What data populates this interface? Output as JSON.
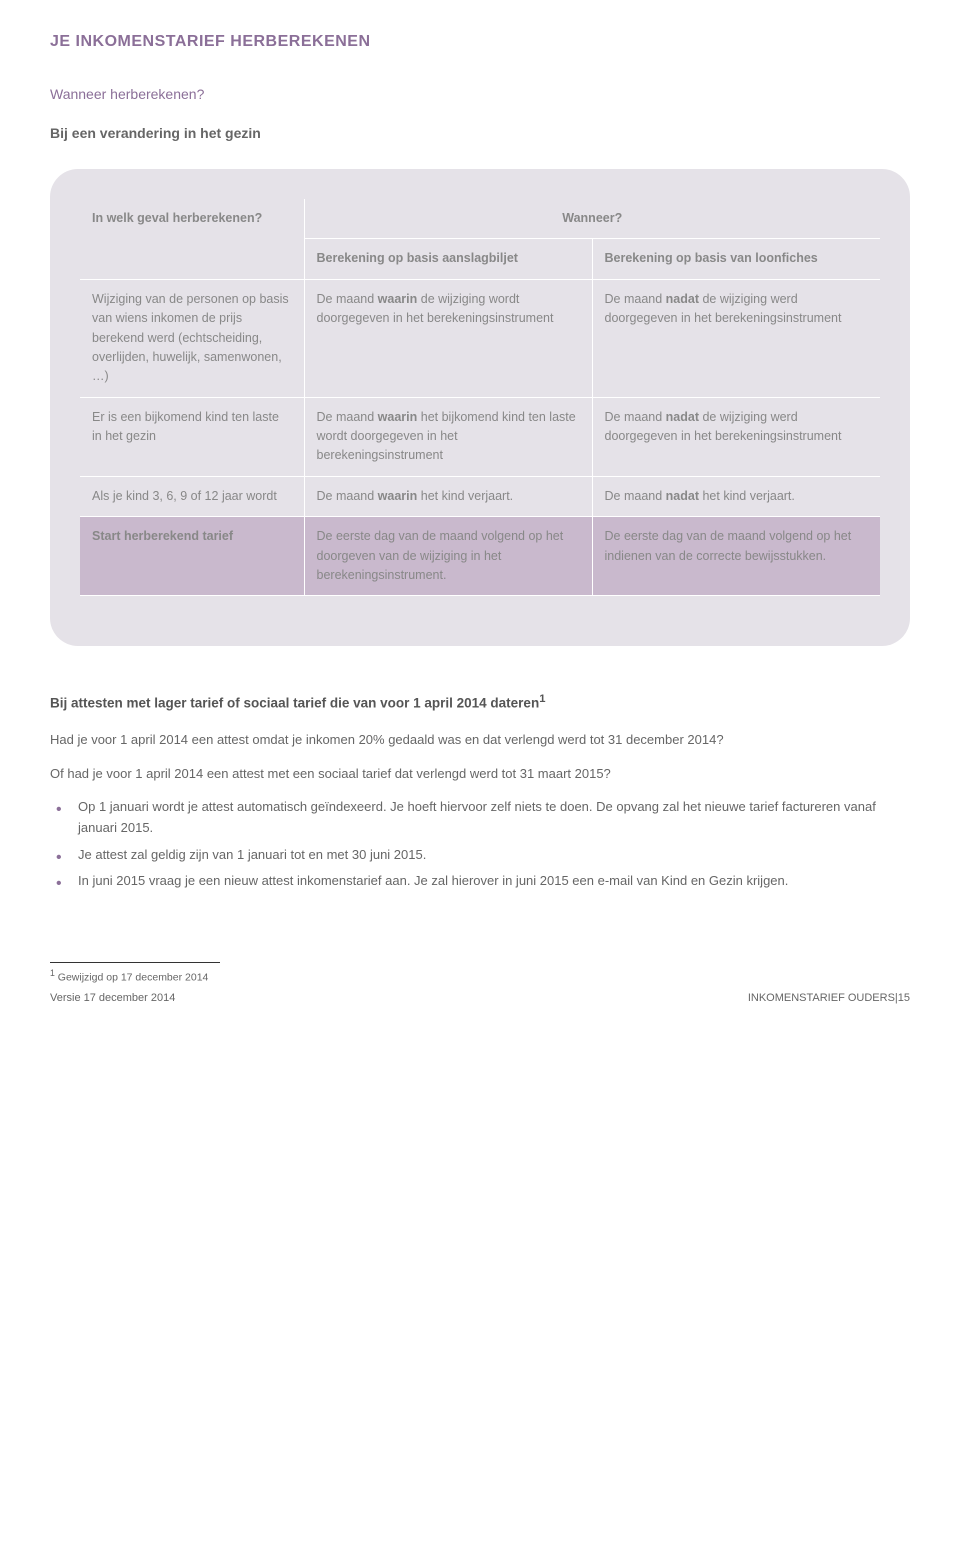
{
  "title": "JE INKOMENSTARIEF HERBEREKENEN",
  "subtitle": "Wanneer herberekenen?",
  "section_a_title": "Bij een verandering in het gezin",
  "table": {
    "col0_header": "In welk geval herberekenen?",
    "span_header": "Wanneer?",
    "col1_header": "Berekening op basis aanslagbiljet",
    "col2_header": "Berekening op basis van loonfiches",
    "rows": [
      {
        "c0": "Wijziging van de personen op basis van wiens inkomen de prijs berekend werd (echtscheiding, overlijden, huwelijk, samenwonen, …)",
        "c1_pre": "De maand ",
        "c1_b": "waarin",
        "c1_post": " de wijziging wordt doorgegeven in het berekeningsinstrument",
        "c2_pre": "De maand ",
        "c2_b": "nadat",
        "c2_post": " de wijziging werd doorgegeven in het berekeningsinstrument"
      },
      {
        "c0": "Er is een bijkomend kind ten laste in het gezin",
        "c1_pre": "De maand ",
        "c1_b": "waarin",
        "c1_post": " het bijkomend kind ten laste wordt doorgegeven in het berekeningsinstrument",
        "c2_pre": "De maand ",
        "c2_b": "nadat",
        "c2_post": " de wijziging werd doorgegeven in het berekeningsinstrument"
      },
      {
        "c0": "Als je kind 3, 6, 9 of 12  jaar wordt",
        "c1_pre": "De maand ",
        "c1_b": "waarin",
        "c1_post": " het kind verjaart.",
        "c2_pre": "De maand ",
        "c2_b": "nadat",
        "c2_post": " het kind verjaart."
      }
    ],
    "highlight": {
      "c0": "Start herberekend tarief",
      "c1": "De eerste dag van de maand volgend op het doorgeven van de wijziging in het berekeningsinstrument.",
      "c2": "De eerste dag van de maand volgend op het indienen van de correcte bewijsstukken."
    }
  },
  "section_b": {
    "heading_pre": "Bij attesten met lager tarief of sociaal tarief  die van voor 1 april 2014 dateren",
    "heading_sup": "1",
    "p1": "Had je voor 1 april 2014 een attest omdat je inkomen 20% gedaald was en dat verlengd werd tot 31 december 2014?",
    "p2": "Of had je voor 1 april 2014 een attest met een sociaal tarief dat verlengd werd tot 31 maart 2015?",
    "bullets": [
      "Op 1 januari wordt je attest automatisch geïndexeerd. Je hoeft hiervoor zelf niets te doen. De opvang zal het nieuwe tarief factureren vanaf  januari 2015.",
      "Je attest zal geldig zijn van 1 januari tot en met 30 juni 2015.",
      "In juni 2015 vraag je een nieuw attest inkomenstarief aan. Je zal hierover in juni 2015 een e-mail van Kind en Gezin krijgen."
    ]
  },
  "footnote": {
    "marker": "1",
    "text": " Gewijzigd op 17 december 2014"
  },
  "footer": {
    "left": "Versie 17 december 2014",
    "right": "INKOMENSTARIEF OUDERS|15"
  }
}
